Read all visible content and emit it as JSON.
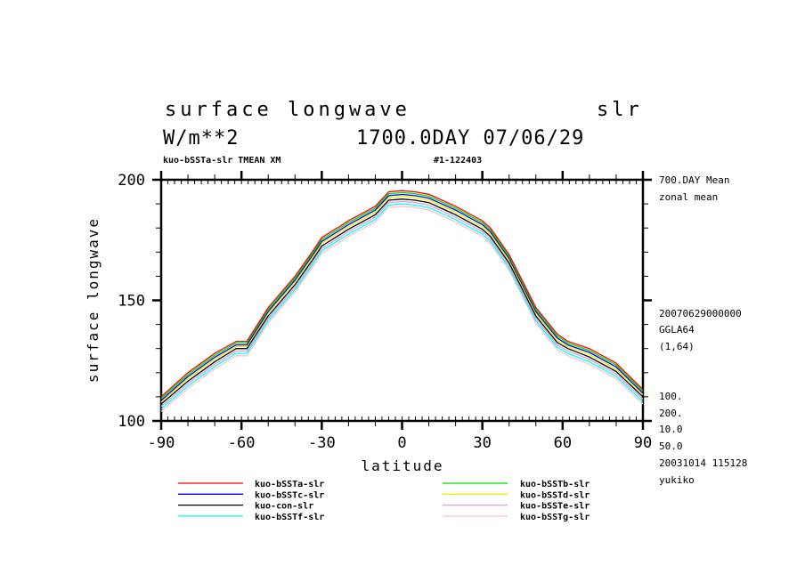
{
  "chart_data": {
    "type": "line",
    "title_left": "surface longwave",
    "title_right": "slr",
    "units": "W/m**2",
    "time_label": "1700.0DAY 07/06/29",
    "subtitle_left": "kuo-bSSTa-slr TMEAN XM",
    "subtitle_right": "#1-122403",
    "xlabel": "latitude",
    "ylabel": "surface longwave",
    "xlim": [
      -90,
      90
    ],
    "ylim": [
      100,
      200
    ],
    "xticks": [
      "-90",
      "-60",
      "-30",
      "0",
      "30",
      "60",
      "90"
    ],
    "yticks": [
      "100",
      "150",
      "200"
    ],
    "x": [
      -90,
      -80,
      -70,
      -62,
      -58,
      -50,
      -40,
      -33,
      -30,
      -20,
      -10,
      -5,
      0,
      5,
      10,
      20,
      30,
      33,
      40,
      50,
      58,
      62,
      70,
      80,
      90
    ],
    "series": [
      {
        "name": "kuo-bSSTa-slr",
        "color": "#ff0000",
        "values": [
          110,
          120,
          128,
          133,
          133,
          147,
          160,
          171,
          176,
          183,
          189,
          195,
          195.5,
          195,
          194,
          189,
          183,
          180,
          169,
          147,
          136,
          133,
          130,
          124,
          113
        ]
      },
      {
        "name": "kuo-bSSTb-slr",
        "color": "#00dd00",
        "values": [
          109.3,
          119.2,
          127.2,
          132.3,
          132.3,
          146.2,
          159.2,
          170.2,
          175.2,
          182.2,
          188.2,
          194.2,
          194.7,
          194.2,
          193.2,
          188.2,
          182.2,
          179.2,
          168.2,
          146.2,
          135.2,
          132.3,
          129.2,
          123.2,
          112.3
        ]
      },
      {
        "name": "kuo-bSSTc-slr",
        "color": "#0000ff",
        "values": [
          108.5,
          118.4,
          126.4,
          131.5,
          131.5,
          145.4,
          158.4,
          169.4,
          174.4,
          181.4,
          187.4,
          193.4,
          193.9,
          193.4,
          192.4,
          187.4,
          181.4,
          178.4,
          167.4,
          145.4,
          134.4,
          131.5,
          128.4,
          122.4,
          111.5
        ]
      },
      {
        "name": "kuo-bSSTd-slr",
        "color": "#eeee00",
        "values": [
          107.8,
          117.6,
          125.6,
          130.8,
          130.8,
          144.6,
          157.6,
          168.6,
          173.6,
          180.6,
          186.6,
          192.6,
          193.1,
          192.6,
          191.6,
          186.6,
          180.6,
          177.6,
          166.6,
          144.6,
          133.6,
          130.8,
          127.6,
          121.6,
          110.8
        ]
      },
      {
        "name": "kuo-con-slr",
        "color": "#000000",
        "values": [
          107,
          116.5,
          124.5,
          130,
          130,
          143.5,
          156.5,
          167.5,
          172.5,
          179.5,
          185.5,
          191.5,
          192,
          191.5,
          190.5,
          185.5,
          179.5,
          176.5,
          165.5,
          143.5,
          132.5,
          130,
          126.5,
          120.5,
          110
        ]
      },
      {
        "name": "kuo-bSSTe-slr",
        "color": "#dda0dd",
        "values": [
          106,
          115.5,
          123.5,
          129,
          129,
          142.5,
          155.5,
          166.5,
          171.5,
          178.5,
          184.5,
          190.5,
          191,
          190.5,
          189.5,
          184.5,
          178.5,
          175.5,
          164.5,
          142.5,
          131.5,
          129,
          125.5,
          119.5,
          109
        ]
      },
      {
        "name": "kuo-bSSTf-slr",
        "color": "#00ffff",
        "values": [
          105,
          114.5,
          122.5,
          128,
          128,
          141.5,
          154.5,
          165.5,
          170.5,
          177.5,
          183.5,
          189.5,
          190,
          189.5,
          188.5,
          183.5,
          177.5,
          174.5,
          163.5,
          141.5,
          130.5,
          128,
          124.5,
          118.5,
          108
        ]
      },
      {
        "name": "kuo-bSSTg-slr",
        "color": "#ffc0cb",
        "values": [
          104,
          113.5,
          121.5,
          127,
          127,
          140.5,
          153.5,
          164.5,
          169.5,
          176.5,
          182.5,
          188.5,
          189,
          188.5,
          187.5,
          182.5,
          176.5,
          173.5,
          162.5,
          140.5,
          129.5,
          127,
          123.5,
          117.5,
          107
        ]
      }
    ],
    "legend_left": [
      0,
      2,
      4,
      6
    ],
    "legend_right": [
      1,
      3,
      5,
      7
    ],
    "legend_placement": "bottom"
  },
  "side_info": [
    "700.DAY Mean",
    "zonal mean",
    "20070629000000",
    "GGLA64",
    "(1,64)",
    "100.",
    "200.",
    "10.0",
    "50.0",
    "20031014 115128",
    "yukiko"
  ]
}
